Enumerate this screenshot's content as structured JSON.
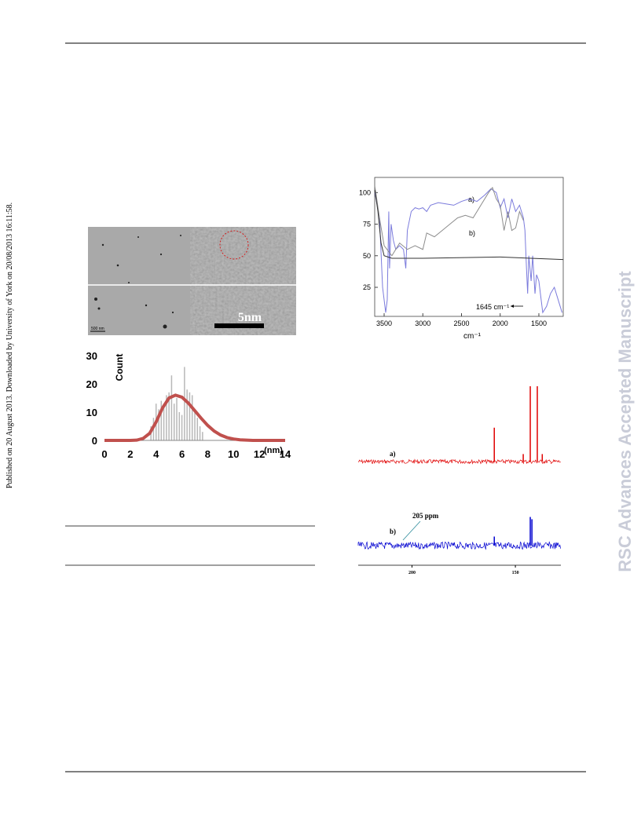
{
  "side_note": "Published on 20 August 2013. Downloaded by University of York on 20/08/2013 16:11:58.",
  "watermark": "RSC Advances Accepted Manuscript",
  "tem": {
    "scale_bar": "5nm",
    "small_scale": "500 nm"
  },
  "histogram": {
    "type": "bar",
    "ylabel": "Count",
    "xlabel": "(nm)",
    "xlim": [
      0,
      14
    ],
    "ylim": [
      0,
      30
    ],
    "xticks": [
      0,
      2,
      4,
      6,
      8,
      10,
      12,
      14
    ],
    "yticks": [
      0,
      10,
      20,
      30
    ],
    "color": "#b8b8b8",
    "x": [
      3.6,
      3.8,
      4.0,
      4.2,
      4.4,
      4.6,
      4.8,
      5.0,
      5.2,
      5.4,
      5.6,
      5.8,
      6.0,
      6.2,
      6.4,
      6.6,
      6.8,
      7.0,
      7.2,
      7.4,
      7.6
    ],
    "values": [
      5,
      8,
      13,
      11,
      14,
      12,
      16,
      17,
      23,
      13,
      15,
      10,
      9,
      26,
      18,
      17,
      16,
      11,
      8,
      5,
      3
    ],
    "fit": {
      "color": "#c0504d",
      "x": [
        0,
        0.5,
        1,
        1.5,
        2,
        2.5,
        3,
        3.5,
        4,
        4.5,
        5,
        5.5,
        6,
        6.5,
        7,
        7.5,
        8,
        8.5,
        9,
        9.5,
        10,
        10.5,
        11,
        11.5,
        12,
        12.5,
        13,
        13.5,
        14
      ],
      "values": [
        0,
        0,
        0,
        0,
        0,
        0.1,
        0.7,
        2.5,
        6.5,
        11.5,
        15,
        16,
        15.3,
        13.2,
        10.5,
        7.8,
        5.3,
        3.3,
        1.9,
        1,
        0.5,
        0.2,
        0.1,
        0,
        0,
        0,
        0,
        0,
        0
      ]
    }
  },
  "ir": {
    "type": "line",
    "xlabel": "cm⁻¹",
    "xlim": [
      3622,
      1185
    ],
    "ylim": [
      2,
      112
    ],
    "xticks": [
      3500,
      3000,
      2500,
      2000,
      1500
    ],
    "yticks": [
      25,
      50,
      75,
      100
    ],
    "annotations": [
      "a)",
      "b)",
      "1645 cm⁻¹"
    ],
    "series": [
      {
        "color": "#7b7bdc",
        "x": [
          3620,
          3560,
          3520,
          3480,
          3460,
          3440,
          3430,
          3410,
          3380,
          3350,
          3300,
          3250,
          3220,
          3200,
          3150,
          3100,
          3050,
          3000,
          2950,
          2900,
          2800,
          2700,
          2600,
          2500,
          2400,
          2300,
          2200,
          2120,
          2050,
          2000,
          1950,
          1900,
          1850,
          1800,
          1750,
          1700,
          1680,
          1660,
          1645,
          1630,
          1600,
          1580,
          1550,
          1530,
          1500,
          1450,
          1400,
          1350,
          1300,
          1250,
          1200
        ],
        "values": [
          100,
          80,
          25,
          5,
          15,
          85,
          40,
          75,
          62,
          55,
          58,
          55,
          40,
          70,
          85,
          88,
          87,
          88,
          85,
          90,
          92,
          91,
          90,
          93,
          95,
          93,
          98,
          103,
          100,
          88,
          95,
          80,
          95,
          85,
          90,
          80,
          70,
          40,
          20,
          50,
          30,
          50,
          20,
          35,
          30,
          5,
          10,
          20,
          25,
          15,
          5
        ]
      },
      {
        "color": "#8c8c8c",
        "x": [
          3620,
          3560,
          3500,
          3400,
          3300,
          3200,
          3100,
          3000,
          2950,
          2850,
          2750,
          2650,
          2550,
          2450,
          2350,
          2250,
          2150,
          2100,
          2050,
          2000,
          1950,
          1900,
          1850,
          1800,
          1750,
          1700
        ],
        "values": [
          105,
          80,
          58,
          50,
          60,
          55,
          58,
          55,
          68,
          65,
          70,
          75,
          80,
          82,
          80,
          90,
          100,
          104,
          95,
          90,
          70,
          85,
          70,
          72,
          85,
          78
        ]
      },
      {
        "color": "#333333",
        "x": [
          3620,
          3580,
          3540,
          3500,
          3400,
          3000,
          2000,
          1600,
          1185
        ],
        "values": [
          102,
          85,
          60,
          50,
          48,
          48,
          49,
          48,
          47
        ]
      }
    ]
  },
  "nmr": {
    "type": "line",
    "xlim": [
      226,
      128
    ],
    "xticks": [
      200,
      150
    ],
    "annotation": "205 ppm",
    "spectra": [
      {
        "label": "a)",
        "color": "#e00000",
        "x": [
          160.2,
          146.2,
          142.8,
          139.4,
          137
        ],
        "values": [
          45,
          10,
          100,
          100,
          10
        ]
      },
      {
        "label": "b)",
        "color": "#0000d0",
        "x": [
          160.2,
          142.8,
          142
        ],
        "values": [
          12,
          38,
          35
        ]
      }
    ]
  }
}
